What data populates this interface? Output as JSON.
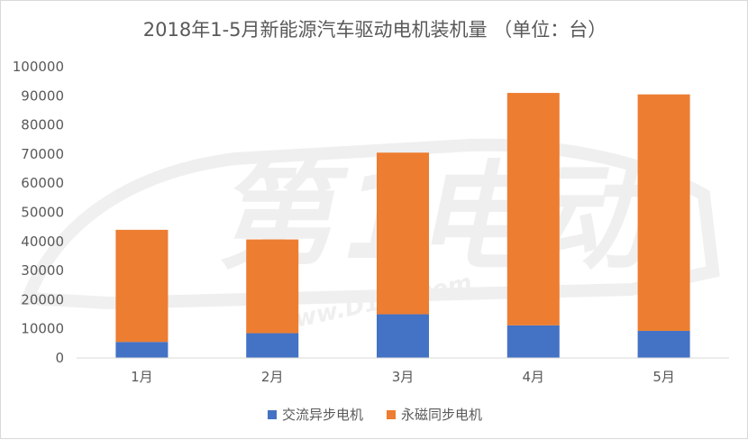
{
  "chart_data": {
    "type": "bar",
    "stacked": true,
    "title": "2018年1-5月新能源汽车驱动电机装机量 （单位：台）",
    "categories": [
      "1月",
      "2月",
      "3月",
      "4月",
      "5月"
    ],
    "series": [
      {
        "name": "交流异步电机",
        "color": "#4472C4",
        "values": [
          5500,
          8500,
          15000,
          11200,
          9300
        ]
      },
      {
        "name": "永磁同步电机",
        "color": "#ED7D31",
        "values": [
          38500,
          32200,
          55500,
          79800,
          81200
        ]
      }
    ],
    "y_ticks": [
      "0",
      "10000",
      "20000",
      "30000",
      "40000",
      "50000",
      "60000",
      "70000",
      "80000",
      "90000",
      "100000"
    ],
    "ylim": [
      0,
      100000
    ],
    "xlabel": "",
    "ylabel": "",
    "grid": false,
    "legend_position": "bottom"
  },
  "watermark": {
    "brand": "第1电动",
    "url": "www.D1EV.com"
  }
}
